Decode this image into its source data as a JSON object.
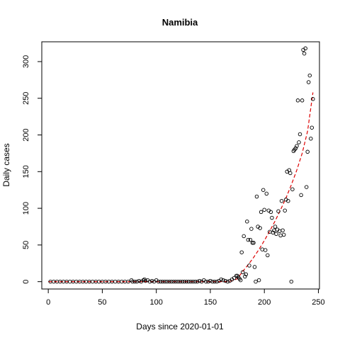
{
  "chart_data": {
    "type": "scatter",
    "title": "Namibia",
    "xlabel": "Days since 2020-01-01",
    "ylabel": "Daily cases",
    "xlim": [
      -6,
      251
    ],
    "ylim": [
      -10,
      327
    ],
    "xticks": [
      0,
      50,
      100,
      150,
      200,
      250
    ],
    "yticks": [
      0,
      50,
      100,
      150,
      200,
      250,
      300
    ],
    "grid": false,
    "legend": "none",
    "point_color": "#000000",
    "fit_color": "#dd0000",
    "series": [
      {
        "type": "points",
        "x": [
          2,
          5,
          8,
          11,
          14,
          17,
          20,
          23,
          26,
          29,
          32,
          35,
          38,
          41,
          44,
          47,
          50,
          53,
          56,
          59,
          62,
          65,
          68,
          71,
          74,
          77,
          78,
          80,
          82,
          84,
          86,
          88,
          89,
          90,
          92,
          94,
          96,
          98,
          100,
          102,
          104,
          106,
          108,
          110,
          112,
          114,
          116,
          118,
          120,
          122,
          124,
          126,
          128,
          130,
          132,
          134,
          136,
          138,
          140,
          142,
          144,
          146,
          148,
          150,
          152,
          154,
          156,
          158,
          160,
          162,
          164,
          166,
          168,
          170,
          172,
          174,
          175,
          176,
          177,
          178,
          179,
          180,
          181,
          182,
          183,
          184,
          185,
          186,
          187,
          188,
          189,
          190,
          191,
          192,
          193,
          194,
          195,
          196,
          197,
          198,
          199,
          200,
          201,
          202,
          203,
          204,
          205,
          206,
          207,
          208,
          209,
          210,
          211,
          212,
          213,
          214,
          215,
          216,
          217,
          218,
          219,
          220,
          221,
          222,
          223,
          224,
          225,
          226,
          227,
          228,
          229,
          230,
          231,
          232,
          233,
          234,
          235,
          236,
          237,
          238,
          239,
          240,
          241,
          242,
          243,
          244,
          245
        ],
        "y": [
          0,
          0,
          0,
          0,
          0,
          0,
          0,
          0,
          0,
          0,
          0,
          0,
          0,
          0,
          0,
          0,
          0,
          0,
          0,
          0,
          0,
          0,
          0,
          0,
          0,
          2,
          0,
          0,
          0,
          1,
          0,
          2,
          3,
          1,
          2,
          0,
          1,
          0,
          2,
          0,
          0,
          0,
          0,
          0,
          0,
          0,
          0,
          0,
          0,
          0,
          0,
          0,
          0,
          0,
          0,
          0,
          0,
          0,
          1,
          0,
          2,
          0,
          0,
          1,
          0,
          0,
          0,
          1,
          3,
          2,
          1,
          0,
          1,
          3,
          5,
          8,
          8,
          6,
          4,
          2,
          40,
          13,
          62,
          7,
          10,
          82,
          57,
          22,
          57,
          72,
          53,
          53,
          20,
          0,
          116,
          75,
          2,
          73,
          95,
          44,
          125,
          98,
          43,
          120,
          36,
          97,
          68,
          95,
          87,
          67,
          70,
          75,
          65,
          71,
          96,
          69,
          63,
          110,
          70,
          64,
          97,
          112,
          150,
          110,
          152,
          148,
          0,
          126,
          178,
          180,
          182,
          185,
          247,
          190,
          201,
          118,
          247,
          316,
          311,
          318,
          129,
          177,
          272,
          281,
          195,
          210,
          249
        ]
      },
      {
        "type": "fit",
        "x": [
          0,
          150,
          160,
          165,
          170,
          175,
          180,
          185,
          190,
          195,
          200,
          205,
          210,
          215,
          220,
          225,
          230,
          235,
          240,
          245
        ],
        "y": [
          0,
          0,
          0,
          0,
          1,
          4,
          14,
          23,
          33,
          44,
          56,
          69,
          83,
          98,
          114,
          132,
          152,
          175,
          205,
          258
        ]
      }
    ]
  }
}
